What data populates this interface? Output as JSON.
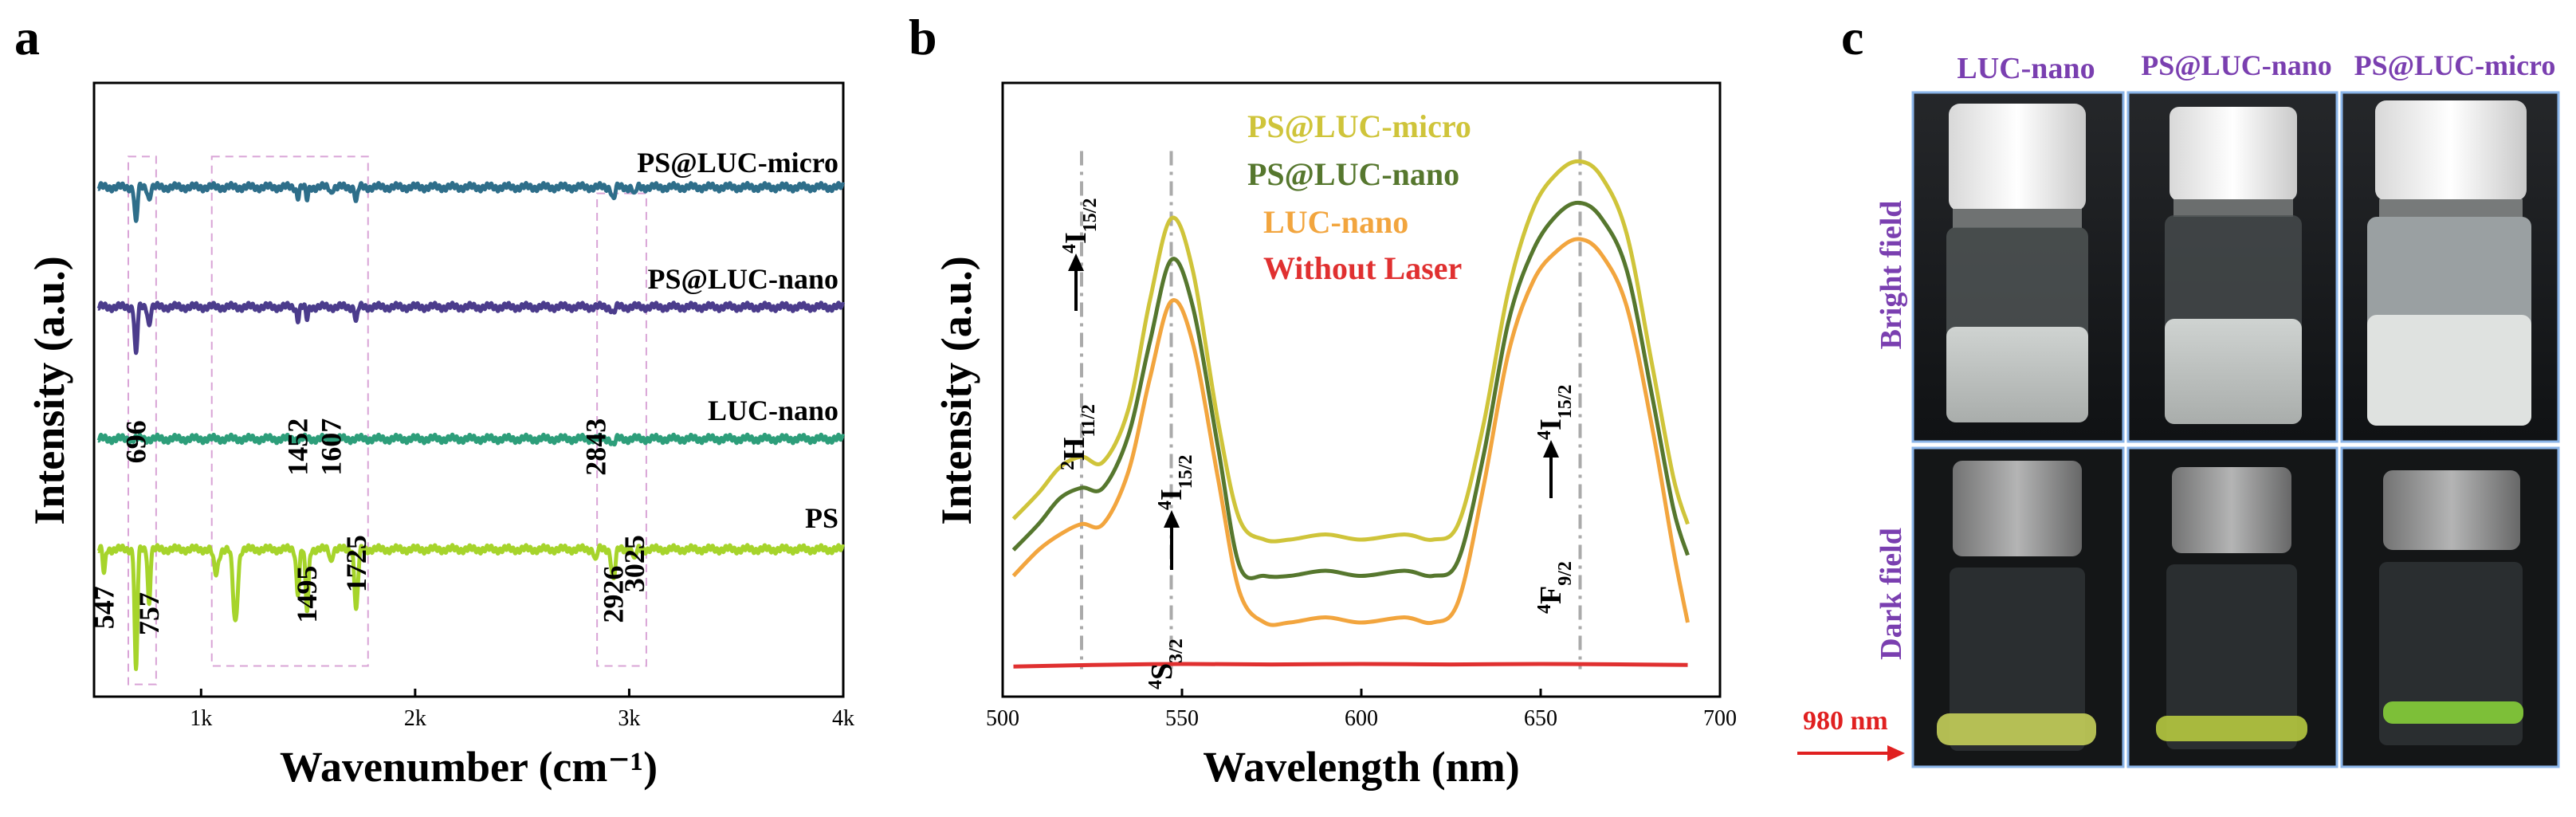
{
  "panels": {
    "a": {
      "letter": "a"
    },
    "b": {
      "letter": "b"
    },
    "c": {
      "letter": "c"
    }
  },
  "chart_data": [
    {
      "panel": "a",
      "type": "line",
      "title": "",
      "xlabel": "Wavenumber (cm⁻¹)",
      "ylabel": "Intensity (a.u.)",
      "xlim": [
        500,
        4000
      ],
      "xticks": [
        1000,
        2000,
        3000,
        4000
      ],
      "xtick_labels": [
        "1k",
        "2k",
        "3k",
        "4k"
      ],
      "series": [
        {
          "name": "PS@LUC-micro",
          "color": "#2e6e8a",
          "baseline": 0.83,
          "bands": [
            [
              696,
              0.06,
              9
            ],
            [
              757,
              0.02,
              8
            ],
            [
              1452,
              0.015,
              8
            ],
            [
              1495,
              0.02,
              8
            ],
            [
              1607,
              0.01,
              6
            ],
            [
              1725,
              0.025,
              8
            ],
            [
              2926,
              0.02,
              10
            ],
            [
              3025,
              0.015,
              8
            ]
          ]
        },
        {
          "name": "PS@LUC-nano",
          "color": "#4b3c8c",
          "baseline": 0.635,
          "bands": [
            [
              696,
              0.08,
              9
            ],
            [
              757,
              0.03,
              8
            ],
            [
              1452,
              0.02,
              8
            ],
            [
              1495,
              0.02,
              8
            ],
            [
              1725,
              0.025,
              8
            ],
            [
              2926,
              0.01,
              10
            ]
          ]
        },
        {
          "name": "LUC-nano",
          "color": "#2d9e7a",
          "baseline": 0.42,
          "bands": [
            [
              2926,
              0.01,
              10
            ]
          ]
        },
        {
          "name": "PS",
          "color": "#a6d42b",
          "baseline": 0.24,
          "bands": [
            [
              547,
              0.04,
              8
            ],
            [
              696,
              0.2,
              9
            ],
            [
              757,
              0.09,
              8
            ],
            [
              1070,
              0.04,
              15
            ],
            [
              1160,
              0.12,
              15
            ],
            [
              1452,
              0.07,
              10
            ],
            [
              1495,
              0.1,
              10
            ],
            [
              1607,
              0.02,
              8
            ],
            [
              1725,
              0.1,
              11
            ],
            [
              2843,
              0.02,
              8
            ],
            [
              2926,
              0.05,
              12
            ],
            [
              3025,
              0.02,
              8
            ]
          ]
        }
      ],
      "band_labels": [
        {
          "text": "547",
          "x": 547,
          "y": 0.11
        },
        {
          "text": "696",
          "x": 696,
          "y": 0.38
        },
        {
          "text": "757",
          "x": 757,
          "y": 0.1
        },
        {
          "text": "1452",
          "x": 1452,
          "y": 0.36
        },
        {
          "text": "1495",
          "x": 1495,
          "y": 0.12
        },
        {
          "text": "1607",
          "x": 1607,
          "y": 0.36
        },
        {
          "text": "1725",
          "x": 1725,
          "y": 0.17
        },
        {
          "text": "2843",
          "x": 2843,
          "y": 0.36
        },
        {
          "text": "2926",
          "x": 2926,
          "y": 0.12
        },
        {
          "text": "3025",
          "x": 3025,
          "y": 0.17
        }
      ],
      "highlight_boxes": [
        {
          "x0": 660,
          "x1": 790,
          "y0": 0.02,
          "y1": 0.88
        },
        {
          "x0": 1050,
          "x1": 1780,
          "y0": 0.05,
          "y1": 0.88
        },
        {
          "x0": 2850,
          "x1": 3080,
          "y0": 0.05,
          "y1": 0.82
        }
      ]
    },
    {
      "panel": "b",
      "type": "line",
      "title": "",
      "xlabel": "Wavelength (nm)",
      "ylabel": "Intensity (a.u.)",
      "xlim": [
        500,
        700
      ],
      "ylim": [
        0,
        1
      ],
      "xticks": [
        500,
        550,
        600,
        650,
        700
      ],
      "xtick_labels": [
        "500",
        "550",
        "600",
        "650",
        "700"
      ],
      "legend": [
        "PS@LUC-micro",
        "PS@LUC-nano",
        "LUC-nano",
        "Without Laser"
      ],
      "legend_position": "top-center",
      "series": [
        {
          "name": "PS@LUC-micro",
          "color": "#cfc43a",
          "x": [
            503,
            510,
            516,
            522,
            528,
            535,
            541,
            547,
            553,
            560,
            566,
            573,
            580,
            590,
            600,
            612,
            620,
            627,
            634,
            641,
            648,
            655,
            661,
            667,
            674,
            681,
            687,
            691
          ],
          "y": [
            0.26,
            0.31,
            0.36,
            0.38,
            0.37,
            0.47,
            0.68,
            0.84,
            0.74,
            0.45,
            0.26,
            0.22,
            0.22,
            0.23,
            0.22,
            0.23,
            0.22,
            0.25,
            0.44,
            0.7,
            0.86,
            0.93,
            0.95,
            0.92,
            0.81,
            0.56,
            0.34,
            0.25
          ]
        },
        {
          "name": "PS@LUC-nano",
          "color": "#56772e",
          "x": [
            503,
            510,
            516,
            522,
            528,
            535,
            541,
            547,
            553,
            560,
            566,
            573,
            580,
            590,
            600,
            612,
            620,
            627,
            634,
            641,
            648,
            655,
            661,
            667,
            674,
            681,
            687,
            691
          ],
          "y": [
            0.2,
            0.25,
            0.3,
            0.32,
            0.32,
            0.42,
            0.6,
            0.76,
            0.67,
            0.4,
            0.17,
            0.15,
            0.15,
            0.16,
            0.15,
            0.16,
            0.15,
            0.18,
            0.38,
            0.64,
            0.78,
            0.85,
            0.87,
            0.84,
            0.74,
            0.5,
            0.28,
            0.19
          ]
        },
        {
          "name": "LUC-nano",
          "color": "#f2a53e",
          "x": [
            503,
            510,
            516,
            522,
            528,
            535,
            541,
            547,
            553,
            560,
            566,
            573,
            580,
            590,
            600,
            612,
            620,
            627,
            634,
            641,
            648,
            655,
            661,
            667,
            674,
            681,
            687,
            691
          ],
          "y": [
            0.15,
            0.2,
            0.23,
            0.25,
            0.25,
            0.35,
            0.53,
            0.68,
            0.6,
            0.34,
            0.12,
            0.06,
            0.06,
            0.07,
            0.06,
            0.07,
            0.06,
            0.1,
            0.32,
            0.58,
            0.72,
            0.78,
            0.8,
            0.77,
            0.67,
            0.44,
            0.2,
            0.06
          ]
        },
        {
          "name": "Without Laser",
          "color": "#e03030",
          "x": [
            503,
            525,
            550,
            575,
            600,
            625,
            650,
            675,
            691
          ],
          "y": [
            -0.025,
            -0.022,
            -0.02,
            -0.021,
            -0.02,
            -0.021,
            -0.02,
            -0.021,
            -0.022
          ]
        }
      ],
      "transitions": [
        {
          "wavelength": 522,
          "from": "2H11/2",
          "to": "4I15/2"
        },
        {
          "wavelength": 547,
          "from": "4S3/2",
          "to": "4I15/2"
        },
        {
          "wavelength": 661,
          "from": "4F9/2",
          "to": "4I15/2"
        }
      ]
    }
  ],
  "panel_c": {
    "column_labels": [
      "LUC-nano",
      "PS@LUC-nano",
      "PS@LUC-micro"
    ],
    "row_labels": [
      "Bright field",
      "Dark field"
    ],
    "laser_label": "980 nm"
  },
  "colors": {
    "label_purple": "#7a3fb0",
    "laser_red": "#e02020",
    "frame_blue": "#8ab4e8"
  }
}
